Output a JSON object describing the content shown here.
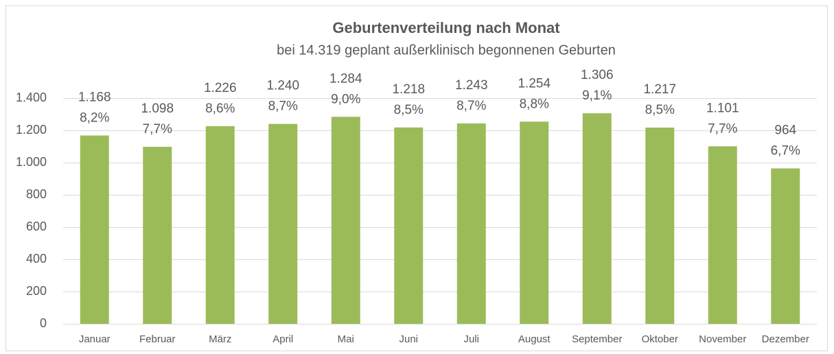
{
  "chart_data": {
    "type": "bar",
    "title": "Geburtenverteilung nach Monat",
    "subtitle": "bei 14.319 geplant außerklinisch begonnenen Geburten",
    "categories": [
      "Januar",
      "Februar",
      "März",
      "April",
      "Mai",
      "Juni",
      "Juli",
      "August",
      "September",
      "Oktober",
      "November",
      "Dezember"
    ],
    "values": [
      1168,
      1098,
      1226,
      1240,
      1284,
      1218,
      1243,
      1254,
      1306,
      1217,
      1101,
      964
    ],
    "value_labels": [
      "1.168",
      "1.098",
      "1.226",
      "1.240",
      "1.284",
      "1.218",
      "1.243",
      "1.254",
      "1.306",
      "1.217",
      "1.101",
      "964"
    ],
    "share_labels": [
      "8,2%",
      "7,7%",
      "8,6%",
      "8,7%",
      "9,0%",
      "8,5%",
      "8,7%",
      "8,8%",
      "9,1%",
      "8,5%",
      "7,7%",
      "6,7%"
    ],
    "color": "#9bbb59",
    "ylim": [
      0,
      1400
    ],
    "yticks": [
      0,
      200,
      400,
      600,
      800,
      {
        "value": 1000,
        "label": "1.000"
      },
      {
        "value": 1200,
        "label": "1.200"
      },
      {
        "value": 1400,
        "label": "1.400"
      }
    ],
    "grid": true
  }
}
